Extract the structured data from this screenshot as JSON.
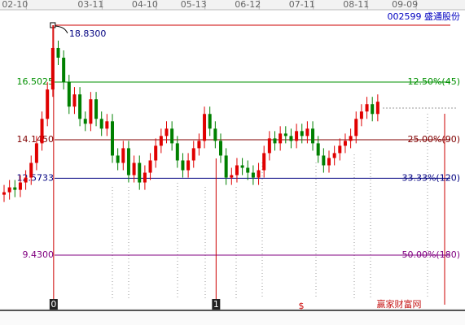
{
  "chart_data": {
    "type": "candlestick",
    "header": "002599 盛通股份",
    "categories": [
      null,
      null,
      "02-10",
      null,
      null,
      null,
      null,
      null,
      null,
      null,
      null,
      null,
      null,
      null,
      null,
      null,
      "03-11",
      null,
      null,
      null,
      null,
      null,
      null,
      null,
      null,
      null,
      "04-10",
      null,
      null,
      null,
      null,
      null,
      null,
      null,
      null,
      "05-13",
      null,
      null,
      null,
      null,
      null,
      null,
      null,
      null,
      null,
      "06-12",
      null,
      null,
      null,
      null,
      null,
      null,
      null,
      null,
      null,
      "07-11",
      null,
      null,
      null,
      null,
      null,
      null,
      null,
      null,
      null,
      "08-11",
      null,
      null,
      null,
      null,
      null,
      null,
      null,
      null,
      "09-09"
    ],
    "open": [
      11.9,
      12.0,
      12.2,
      12.1,
      12.4,
      12.6,
      13.2,
      14.0,
      15.0,
      16.2,
      17.9,
      17.5,
      16.5,
      15.5,
      16.0,
      15.0,
      14.8,
      15.8,
      15.0,
      14.6,
      14.9,
      13.5,
      13.2,
      13.8,
      12.7,
      13.2,
      12.4,
      12.8,
      13.3,
      13.9,
      14.3,
      14.6,
      14.0,
      13.3,
      12.9,
      13.3,
      13.8,
      14.1,
      15.2,
      14.6,
      14.1,
      13.5,
      12.6,
      12.7,
      13.1,
      13.0,
      12.8,
      12.6,
      12.9,
      13.6,
      14.2,
      14.0,
      14.4,
      14.3,
      14.1,
      14.5,
      14.3,
      14.6,
      14.0,
      13.5,
      13.1,
      13.4,
      13.6,
      13.9,
      14.1,
      14.3,
      15.0,
      15.3,
      15.6,
      15.2,
      null,
      null,
      null,
      null,
      null
    ],
    "high": [
      12.3,
      12.5,
      12.5,
      12.7,
      12.9,
      13.5,
      14.3,
      15.3,
      16.5,
      18.83,
      18.2,
      17.8,
      16.8,
      16.3,
      16.3,
      15.3,
      16.1,
      16.1,
      15.3,
      15.2,
      15.2,
      13.8,
      14.1,
      14.1,
      13.5,
      13.5,
      13.1,
      13.6,
      14.2,
      14.6,
      14.9,
      14.9,
      14.3,
      13.6,
      13.6,
      14.1,
      14.4,
      15.5,
      15.5,
      14.9,
      14.4,
      13.8,
      13.0,
      13.4,
      13.4,
      13.3,
      13.1,
      13.2,
      13.9,
      14.5,
      14.5,
      14.7,
      14.7,
      14.6,
      14.8,
      14.8,
      14.9,
      14.9,
      14.3,
      13.8,
      13.7,
      13.9,
      14.2,
      14.4,
      14.6,
      15.3,
      15.6,
      15.9,
      15.9,
      16.0,
      null,
      null,
      null,
      null,
      null
    ],
    "low": [
      11.6,
      11.7,
      11.8,
      11.8,
      12.1,
      12.3,
      12.9,
      13.7,
      14.7,
      15.9,
      17.2,
      16.2,
      15.2,
      15.2,
      14.7,
      14.5,
      14.5,
      14.7,
      14.3,
      14.3,
      13.2,
      12.9,
      12.9,
      12.4,
      12.4,
      12.1,
      12.1,
      12.5,
      13.0,
      13.6,
      14.0,
      13.7,
      13.0,
      12.6,
      12.6,
      13.0,
      13.5,
      13.8,
      14.3,
      13.8,
      13.2,
      12.3,
      12.3,
      12.4,
      12.7,
      12.5,
      12.3,
      12.3,
      12.6,
      13.3,
      13.7,
      13.7,
      14.0,
      13.8,
      13.8,
      14.0,
      14.0,
      13.7,
      13.2,
      12.8,
      12.8,
      13.1,
      13.3,
      13.6,
      13.8,
      14.0,
      14.7,
      15.0,
      14.9,
      14.9,
      null,
      null,
      null,
      null,
      null
    ],
    "close": [
      12.0,
      12.2,
      12.1,
      12.4,
      12.6,
      13.2,
      14.0,
      15.0,
      16.2,
      17.9,
      17.5,
      16.5,
      15.5,
      16.0,
      15.0,
      14.8,
      15.8,
      15.0,
      14.6,
      14.9,
      13.5,
      13.2,
      13.8,
      12.7,
      13.2,
      12.4,
      12.8,
      13.3,
      13.9,
      14.3,
      14.6,
      14.0,
      13.3,
      12.9,
      13.3,
      13.8,
      14.1,
      15.2,
      14.6,
      14.1,
      13.5,
      12.6,
      12.7,
      13.1,
      13.0,
      12.8,
      12.6,
      12.9,
      13.6,
      14.2,
      14.0,
      14.4,
      14.3,
      14.1,
      14.5,
      14.3,
      14.6,
      14.0,
      13.5,
      13.1,
      13.4,
      13.6,
      13.9,
      14.1,
      14.3,
      15.0,
      15.3,
      15.6,
      15.2,
      15.7,
      null,
      null,
      null,
      null,
      null
    ],
    "up_color": "#e00000",
    "down_color": "#008000",
    "ylim": [
      7.57,
      19.46
    ],
    "peak": {
      "value": 18.83,
      "label": "18.8300"
    },
    "levels": [
      {
        "value": 16.5025,
        "ratio": "12.50%(45)",
        "color": "#009000"
      },
      {
        "value": {
          "value": 14.145,
          "label": "14.1450"
        },
        "ratio": "25.00%(90)",
        "color": "#800000"
      },
      {
        "value": 12.5733,
        "ratio": "33.33%(120)",
        "color": "#000080"
      },
      {
        "value": {
          "value": 9.43,
          "label": "9.4300"
        },
        "ratio": "50.00%(180)",
        "color": "#800080"
      }
    ],
    "markers": [
      "0",
      "1"
    ],
    "symbol": "$",
    "watermark": "赢家财富网"
  }
}
